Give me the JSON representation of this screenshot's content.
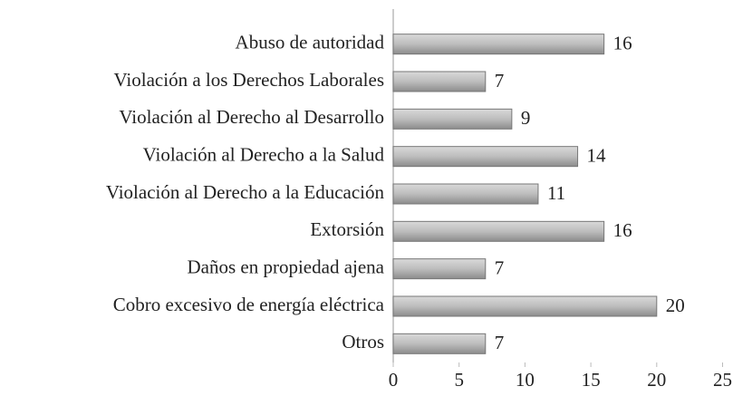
{
  "chart_data": {
    "type": "barh",
    "categories": [
      "Abuso de autoridad",
      "Violación a los Derechos Laborales",
      "Violación al Derecho al Desarrollo",
      "Violación al Derecho a la Salud",
      "Violación al Derecho a la Educación",
      "Extorsión",
      "Daños en propiedad ajena",
      "Cobro excesivo de energía eléctrica",
      "Otros"
    ],
    "values": [
      16,
      7,
      9,
      14,
      11,
      16,
      7,
      20,
      7
    ],
    "color": "#a6a6a6",
    "xlim": [
      0,
      25
    ],
    "xticks": [
      0,
      5,
      10,
      15,
      20,
      25
    ],
    "grid": false
  }
}
